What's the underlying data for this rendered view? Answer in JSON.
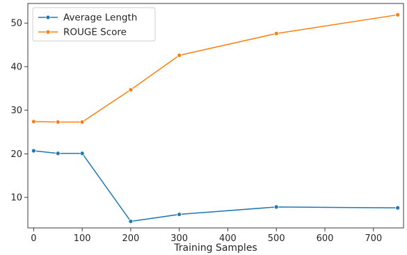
{
  "chart_data": {
    "type": "line",
    "title": "",
    "xlabel": "Training Samples",
    "ylabel": "",
    "xlim": [
      -12,
      762
    ],
    "ylim": [
      3,
      54.5
    ],
    "xticks": [
      0,
      100,
      200,
      300,
      400,
      500,
      600,
      700
    ],
    "yticks": [
      10,
      20,
      30,
      40,
      50
    ],
    "grid": false,
    "legend": "top-left",
    "x": [
      0,
      50,
      100,
      200,
      300,
      500,
      750
    ],
    "series": [
      {
        "name": "Average Length",
        "color": "#1f77b4",
        "values": [
          20.7,
          20.1,
          20.1,
          4.5,
          6.1,
          7.8,
          7.6
        ]
      },
      {
        "name": "ROUGE Score",
        "color": "#ff7f0e",
        "values": [
          27.4,
          27.3,
          27.3,
          34.7,
          42.6,
          47.6,
          51.9
        ]
      }
    ]
  }
}
